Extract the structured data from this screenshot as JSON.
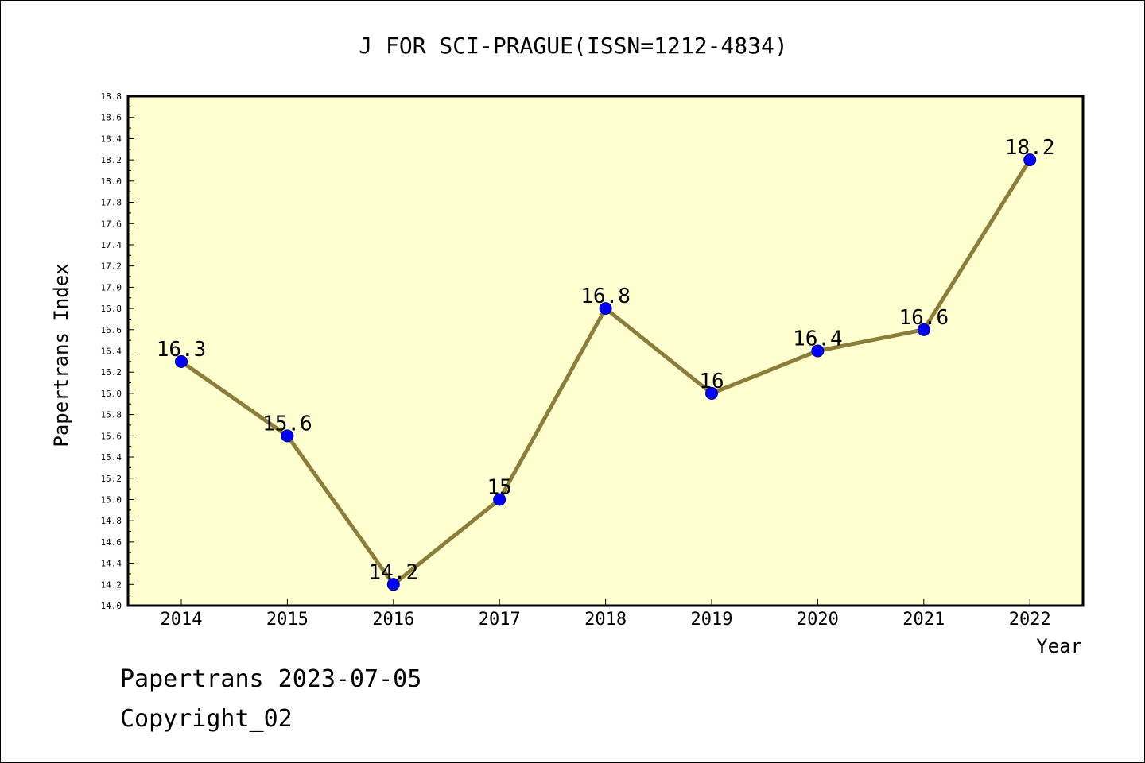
{
  "chart_data": {
    "type": "line",
    "title": "J FOR SCI-PRAGUE(ISSN=1212-4834)",
    "xlabel": "Year",
    "ylabel": "Papertrans Index",
    "categories": [
      "2014",
      "2015",
      "2016",
      "2017",
      "2018",
      "2019",
      "2020",
      "2021",
      "2022"
    ],
    "values": [
      16.3,
      15.6,
      14.2,
      15.0,
      16.8,
      16.0,
      16.4,
      16.6,
      18.2
    ],
    "data_labels": [
      "16.3",
      "15.6",
      "14.2",
      "15",
      "16.8",
      "16",
      "16.4",
      "16.6",
      "18.2"
    ],
    "ylim": [
      14.0,
      18.8
    ],
    "yticks": [
      "14.0",
      "14.2",
      "14.4",
      "14.6",
      "14.8",
      "15.0",
      "15.2",
      "15.4",
      "15.6",
      "15.8",
      "16.0",
      "16.2",
      "16.4",
      "16.6",
      "16.8",
      "17.0",
      "17.2",
      "17.4",
      "17.6",
      "17.8",
      "18.0",
      "18.2",
      "18.4",
      "18.6",
      "18.8"
    ],
    "grid": false,
    "colors": {
      "plot_background": "#ffffd0",
      "line": "#8b7d3a",
      "marker": "#0000ff"
    }
  },
  "footer": {
    "line1": "Papertrans 2023-07-05",
    "line2": "Copyright_02"
  }
}
